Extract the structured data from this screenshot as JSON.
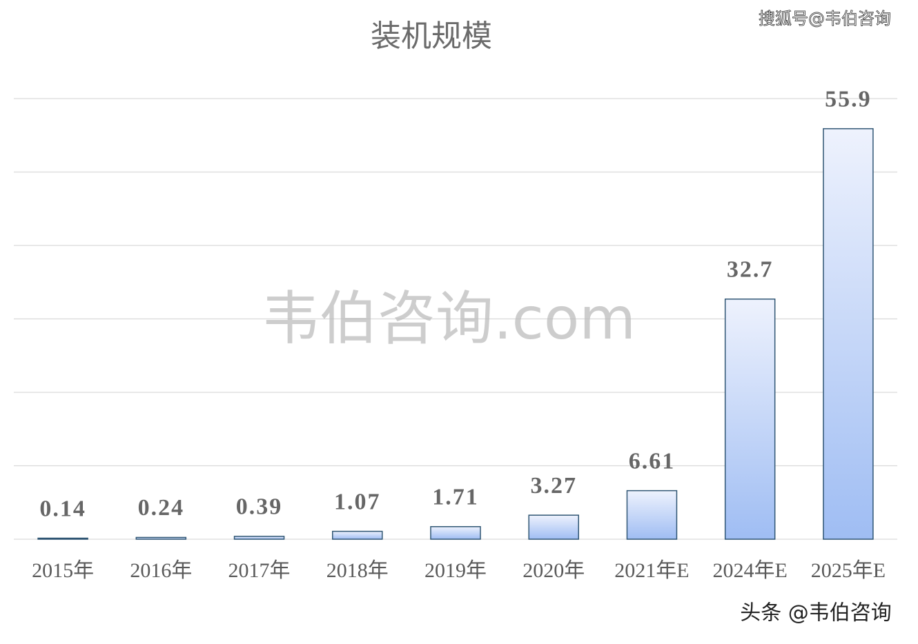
{
  "chart_data": {
    "type": "bar",
    "title": "装机规模",
    "categories": [
      "2015年",
      "2016年",
      "2017年",
      "2018年",
      "2019年",
      "2020年",
      "2021年E",
      "2024年E",
      "2025年E"
    ],
    "values": [
      0.14,
      0.24,
      0.39,
      1.07,
      1.71,
      3.27,
      6.61,
      32.7,
      55.9
    ],
    "color": "#9fbdf3",
    "edge_color": "#2f5573",
    "ylim": [
      0,
      60
    ],
    "yticks": [
      0,
      10,
      20,
      30,
      40,
      50,
      60
    ],
    "grid": true,
    "watermarks": [
      "韦伯咨询.com",
      "搜狐号@韦伯咨询",
      "头条 @韦伯咨询"
    ]
  }
}
